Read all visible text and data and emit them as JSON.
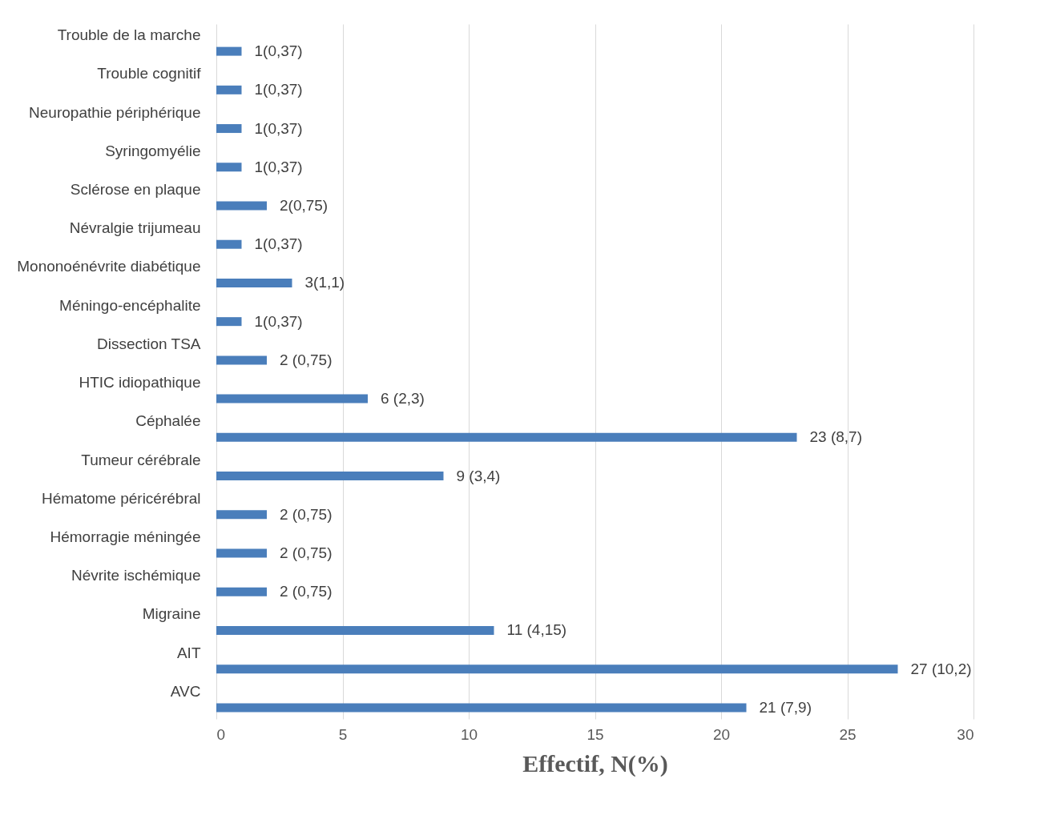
{
  "chart_data": {
    "type": "bar",
    "orientation": "horizontal",
    "xlabel": "Effectif, N(%)",
    "categories": [
      "Trouble de la marche",
      "Trouble cognitif",
      "Neuropathie périphérique",
      "Syringomyélie",
      "Sclérose en plaque",
      "Névralgie trijumeau",
      "Mononoénévrite diabétique",
      "Méningo-encéphalite",
      "Dissection TSA",
      "HTIC idiopathique",
      "Céphalée",
      "Tumeur cérébrale",
      "Hématome péricérébral",
      "Hémorragie méningée",
      "Névrite ischémique",
      "Migraine",
      "AIT",
      "AVC"
    ],
    "values": [
      1,
      1,
      1,
      1,
      2,
      1,
      3,
      1,
      2,
      6,
      23,
      9,
      2,
      2,
      2,
      11,
      27,
      21
    ],
    "value_labels": [
      "1(0,37)",
      "1(0,37)",
      "1(0,37)",
      "1(0,37)",
      "2(0,75)",
      "1(0,37)",
      "3(1,1)",
      "1(0,37)",
      "2 (0,75)",
      "6 (2,3)",
      "23 (8,7)",
      "9 (3,4)",
      "2 (0,75)",
      "2 (0,75)",
      "2 (0,75)",
      "11 (4,15)",
      "27 (10,2)",
      "21 (7,9)"
    ],
    "color": "#4a7ebb",
    "xlim": [
      0,
      30
    ],
    "xticks": [
      0,
      5,
      10,
      15,
      20,
      25,
      30
    ],
    "grid": "x"
  }
}
